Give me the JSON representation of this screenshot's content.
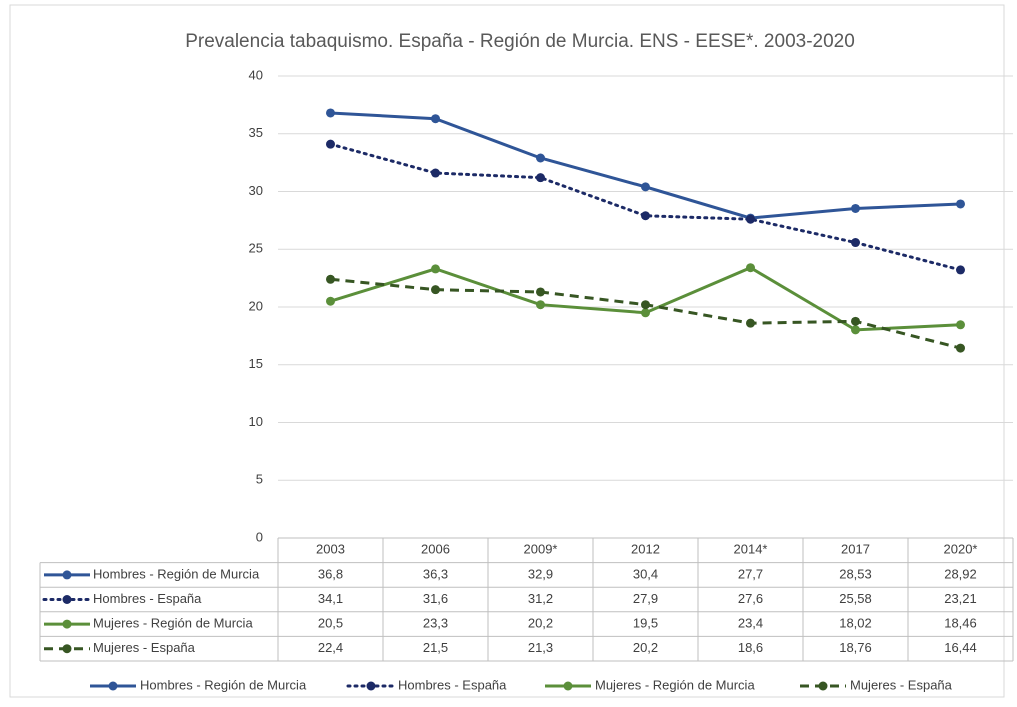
{
  "chart_data": {
    "type": "line",
    "title": "Prevalencia  tabaquismo. España - Región de Murcia. ENS - EESE*. 2003-2020",
    "categories": [
      "2003",
      "2006",
      "2009*",
      "2012",
      "2014*",
      "2017",
      "2020*"
    ],
    "series": [
      {
        "name": "Hombres - Región de Murcia",
        "color": "#2f5597",
        "line_style": "solid",
        "values": [
          36.8,
          36.3,
          32.9,
          30.4,
          27.7,
          28.53,
          28.92
        ],
        "value_labels": [
          "36,8",
          "36,3",
          "32,9",
          "30,4",
          "27,7",
          "28,53",
          "28,92"
        ]
      },
      {
        "name": "Hombres - España",
        "color": "#1c2a66",
        "line_style": "dotted",
        "values": [
          34.1,
          31.6,
          31.2,
          27.9,
          27.6,
          25.58,
          23.21
        ],
        "value_labels": [
          "34,1",
          "31,6",
          "31,2",
          "27,9",
          "27,6",
          "25,58",
          "23,21"
        ]
      },
      {
        "name": "Mujeres - Región de Murcia",
        "color": "#5b8f3a",
        "line_style": "solid",
        "values": [
          20.5,
          23.3,
          20.2,
          19.5,
          23.4,
          18.02,
          18.46
        ],
        "value_labels": [
          "20,5",
          "23,3",
          "20,2",
          "19,5",
          "23,4",
          "18,02",
          "18,46"
        ]
      },
      {
        "name": "Mujeres - España",
        "color": "#375623",
        "line_style": "dashed",
        "values": [
          22.4,
          21.5,
          21.3,
          20.2,
          18.6,
          18.76,
          16.44
        ],
        "value_labels": [
          "22,4",
          "21,5",
          "21,3",
          "20,2",
          "18,6",
          "18,76",
          "16,44"
        ]
      }
    ],
    "ylim": [
      0,
      40
    ],
    "yticks": [
      0,
      5,
      10,
      15,
      20,
      25,
      30,
      35,
      40
    ],
    "grid": true,
    "legend": "bottom"
  }
}
